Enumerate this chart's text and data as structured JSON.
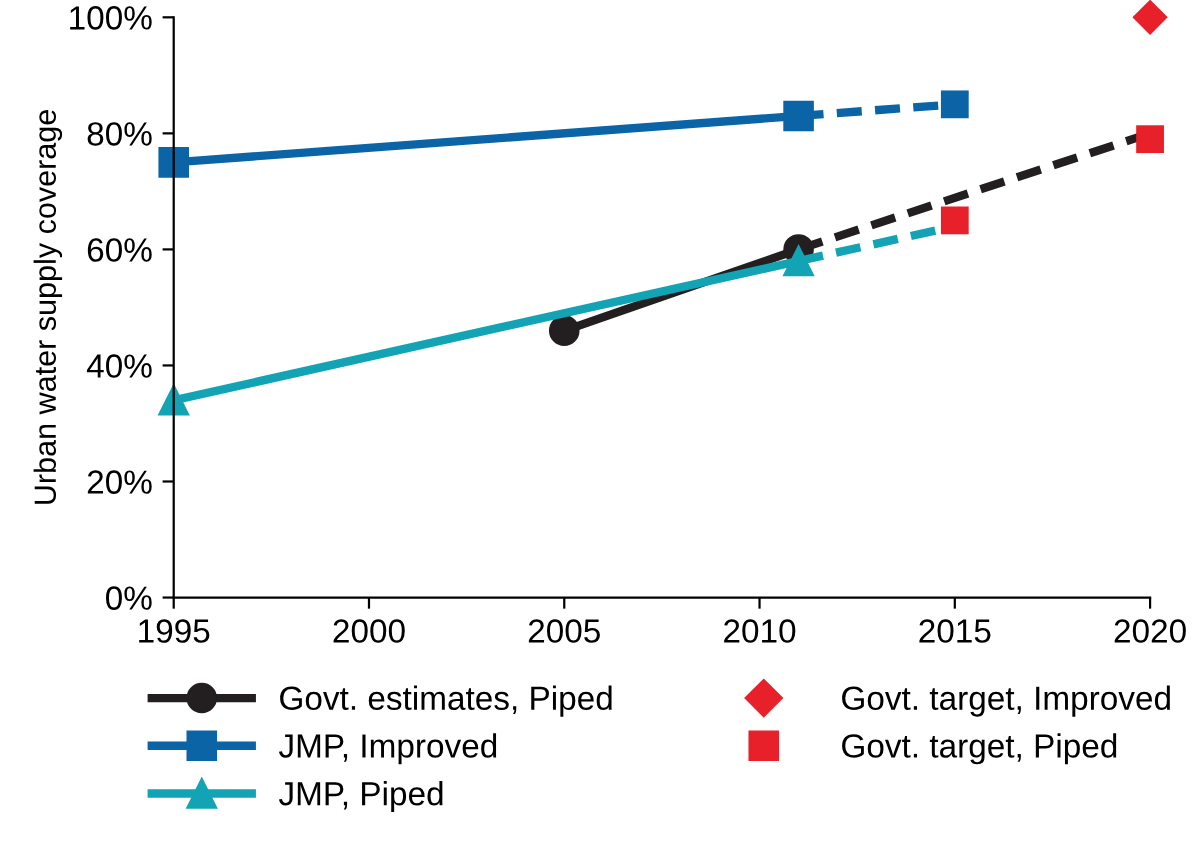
{
  "chart_data": {
    "type": "line",
    "ylabel": "Urban water supply coverage",
    "xlim": [
      1995,
      2020
    ],
    "xticks": [
      1995,
      2000,
      2005,
      2010,
      2015,
      2020
    ],
    "ylim": [
      0,
      100
    ],
    "yticks": [
      {
        "value": 0,
        "label": "0%"
      },
      {
        "value": 20,
        "label": "20%"
      },
      {
        "value": 40,
        "label": "40%"
      },
      {
        "value": 60,
        "label": "60%"
      },
      {
        "value": 80,
        "label": "80%"
      },
      {
        "value": 100,
        "label": "100%"
      }
    ],
    "grid": false,
    "legend": "bottom",
    "series": [
      {
        "name": "Govt. estimates, Piped",
        "color": "#231f20",
        "marker": "circle",
        "line_style": "solid",
        "x": [
          2005,
          2011
        ],
        "values": [
          46,
          60
        ]
      },
      {
        "color": "#231f20",
        "marker": "none",
        "line_style": "dashed",
        "x": [
          2011,
          2020
        ],
        "values": [
          60,
          80
        ]
      },
      {
        "name": "JMP, Improved",
        "color": "#0a64a5",
        "marker": "square",
        "line_style": "solid",
        "x": [
          1995,
          2011
        ],
        "values": [
          75,
          83
        ]
      },
      {
        "color": "#0a64a5",
        "marker": "none",
        "line_style": "dashed",
        "x": [
          2011,
          2015
        ],
        "values": [
          83,
          85
        ]
      },
      {
        "type": "scatter",
        "color": "#0a64a5",
        "marker": "square",
        "x": [
          2015
        ],
        "values": [
          85
        ]
      },
      {
        "name": "JMP, Piped",
        "color": "#12a3b5",
        "marker": "triangle",
        "line_style": "solid",
        "x": [
          1995,
          2011
        ],
        "values": [
          34,
          58
        ]
      },
      {
        "color": "#12a3b5",
        "marker": "none",
        "line_style": "dashed",
        "x": [
          2011,
          2015
        ],
        "values": [
          58,
          64
        ]
      },
      {
        "name": "Govt. target, Improved",
        "type": "scatter",
        "color": "#e8202a",
        "marker": "diamond",
        "x": [
          2020
        ],
        "values": [
          100
        ]
      },
      {
        "name": "Govt. target, Piped",
        "type": "scatter",
        "color": "#e8202a",
        "marker": "square",
        "x": [
          2015,
          2020
        ],
        "values": [
          65,
          79
        ]
      }
    ]
  }
}
